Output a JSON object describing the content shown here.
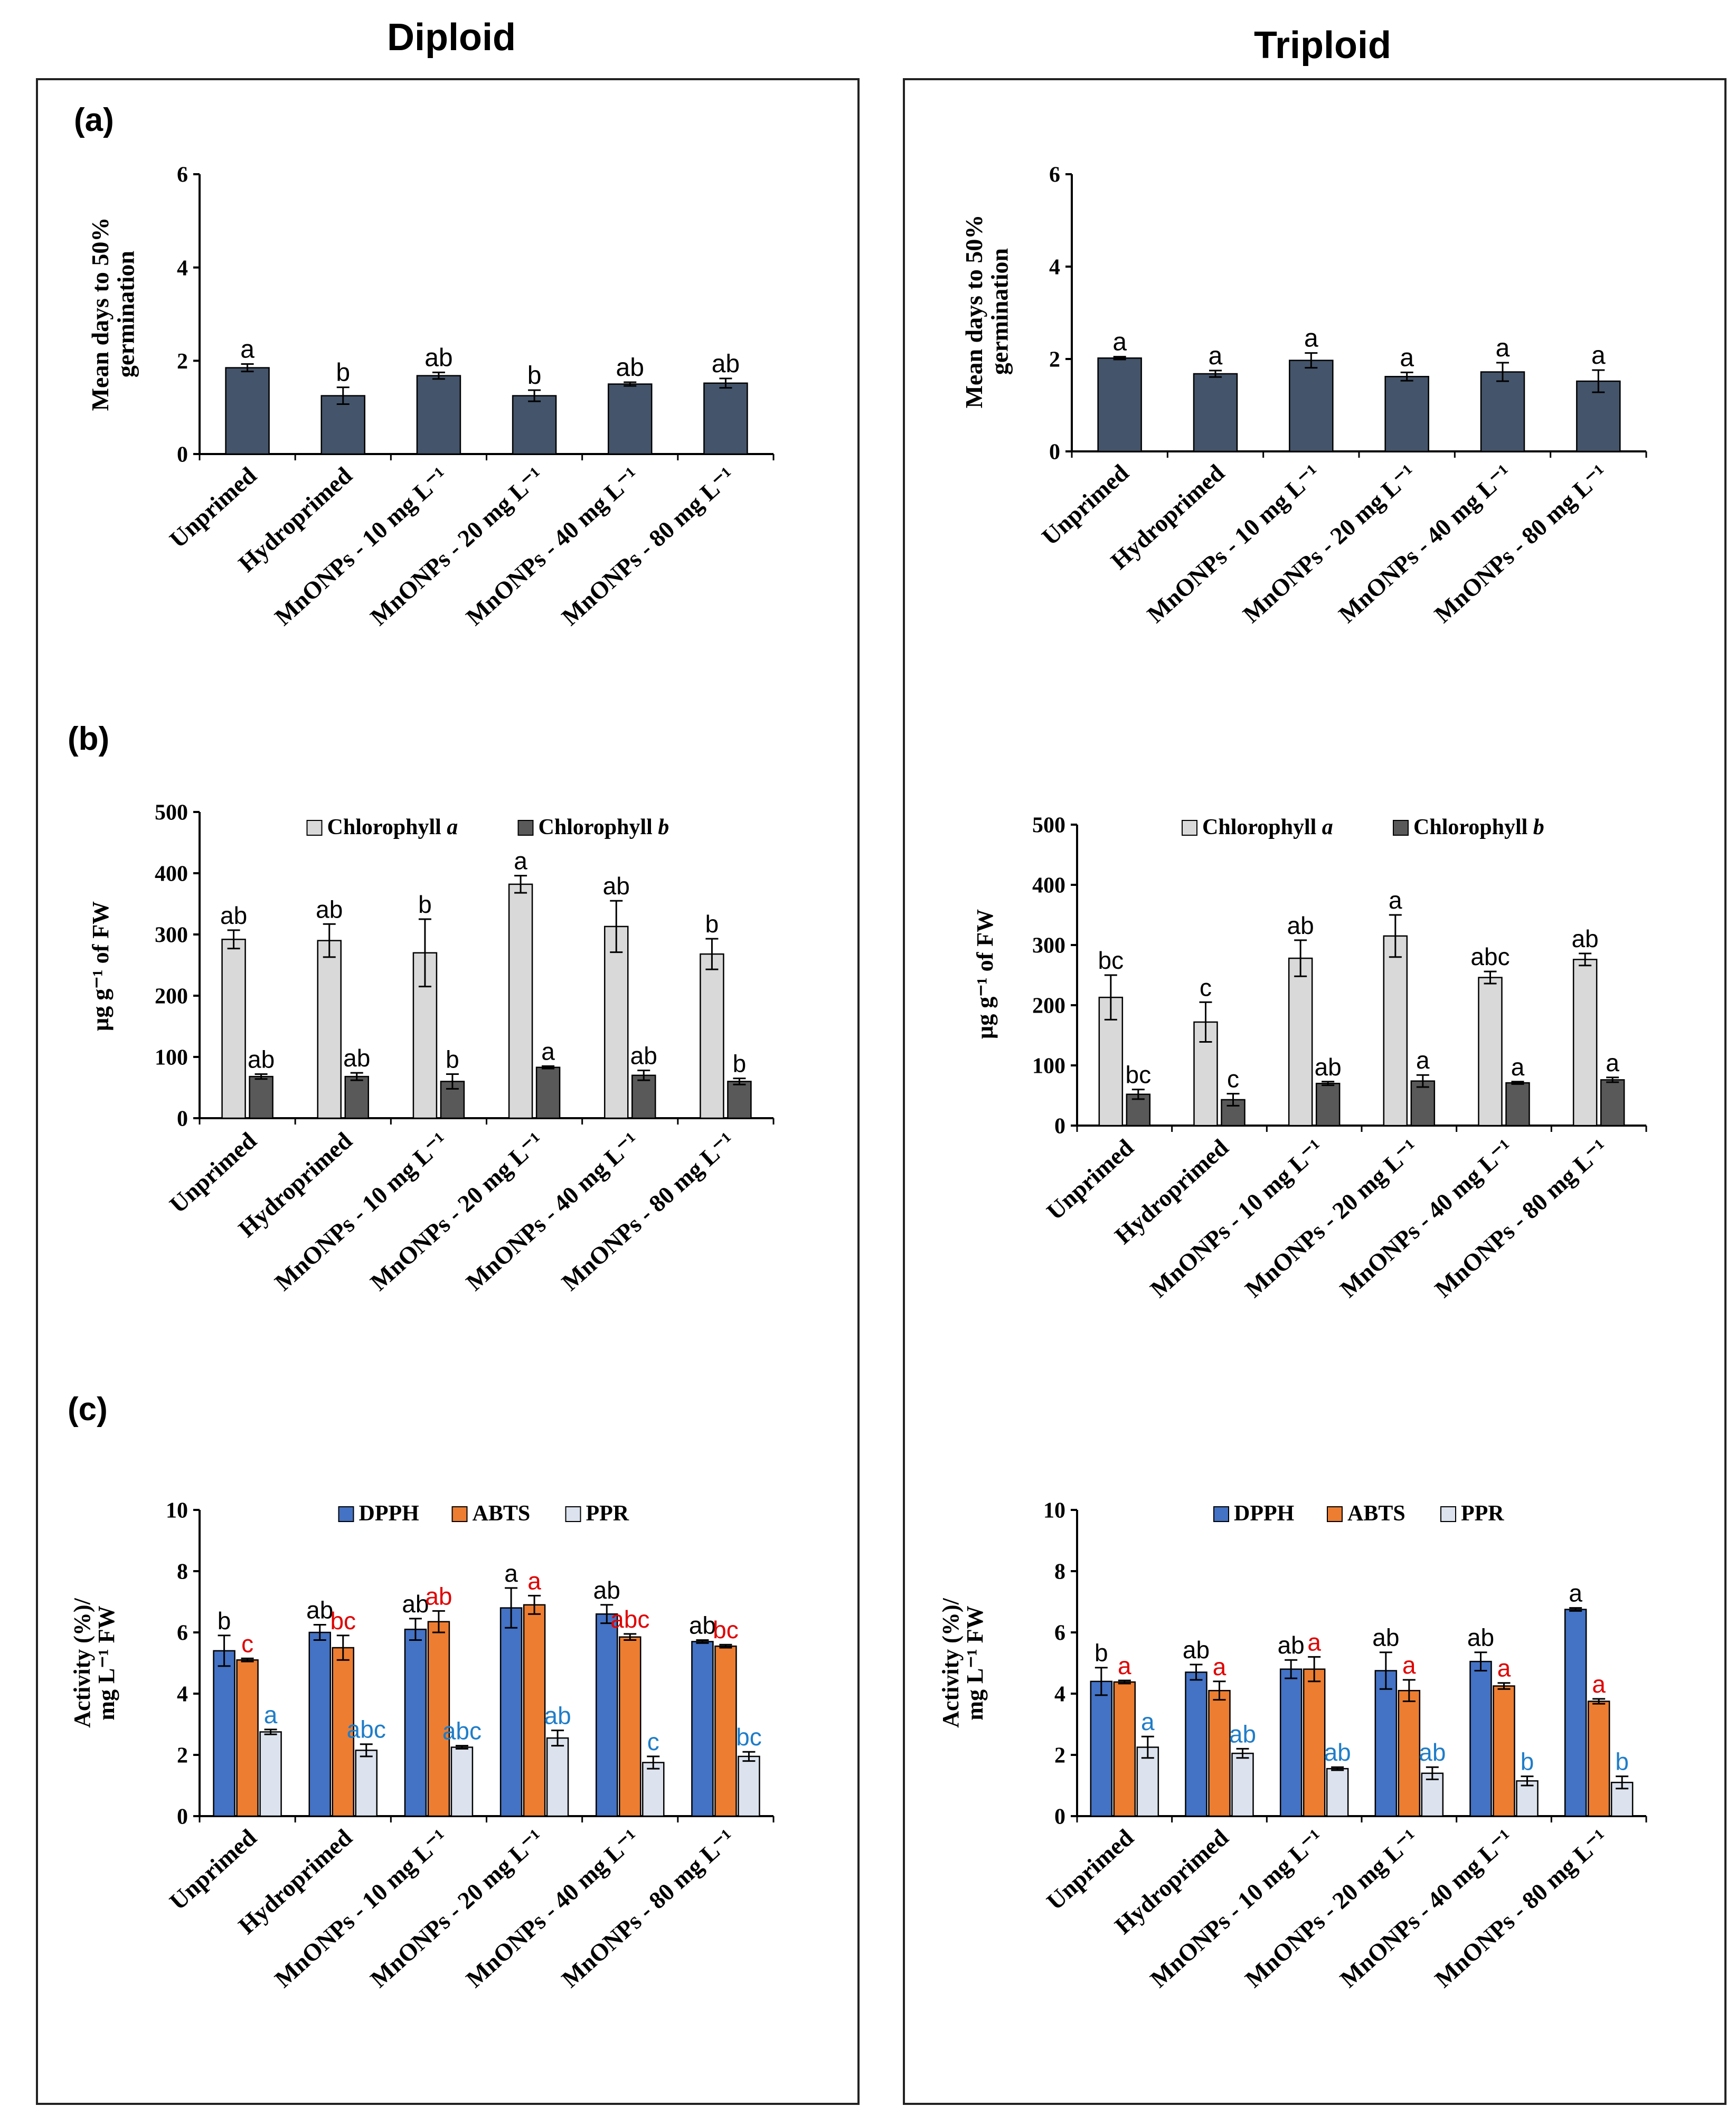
{
  "page": {
    "left_column_title": "Diploid",
    "right_column_title": "Triploid",
    "panel_labels": [
      "(a)",
      "(b)",
      "(c)"
    ]
  },
  "colors": {
    "navy": "#44546a",
    "light_gray": "#d9d9d9",
    "dark_gray": "#595959",
    "dpph": "#4472c4",
    "abts": "#ed7d31",
    "ppr": "#dce3ee",
    "letters_red": "#e00000",
    "letters_blue": "#1f7dc8",
    "letters_black": "#000000"
  },
  "categories": [
    "Unprimed",
    "Hydroprimed",
    "MnONPs - 10 mg L⁻¹",
    "MnONPs - 20 mg L⁻¹",
    "MnONPs - 40 mg L⁻¹",
    "MnONPs - 80 mg L⁻¹"
  ],
  "chart_data": [
    {
      "id": "a-diploid",
      "panel": "(a)",
      "group": "Diploid",
      "type": "bar",
      "ylabel": "Mean days to 50% germination",
      "ylim": [
        0,
        6
      ],
      "yticks": [
        0,
        2,
        4,
        6
      ],
      "categories": [
        "Unprimed",
        "Hydroprimed",
        "MnONPs - 10 mg L⁻¹",
        "MnONPs - 20 mg L⁻¹",
        "MnONPs - 40 mg L⁻¹",
        "MnONPs - 80 mg L⁻¹"
      ],
      "series": [
        {
          "name": "Mean days to 50% germination",
          "color": "#44546a",
          "values": [
            1.85,
            1.25,
            1.68,
            1.25,
            1.5,
            1.52
          ],
          "errors": [
            0.08,
            0.18,
            0.07,
            0.12,
            0.04,
            0.1
          ],
          "letters": [
            "a",
            "b",
            "ab",
            "b",
            "ab",
            "ab"
          ],
          "letter_color": "#000000"
        }
      ]
    },
    {
      "id": "a-triploid",
      "panel": "(a)",
      "group": "Triploid",
      "type": "bar",
      "ylabel": "Mean days to 50% germination",
      "ylim": [
        0,
        6
      ],
      "yticks": [
        0,
        2,
        4,
        6
      ],
      "categories": [
        "Unprimed",
        "Hydroprimed",
        "MnONPs - 10 mg L⁻¹",
        "MnONPs - 20 mg L⁻¹",
        "MnONPs - 40 mg L⁻¹",
        "MnONPs - 80 mg L⁻¹"
      ],
      "series": [
        {
          "name": "Mean days to 50% germination",
          "color": "#44546a",
          "values": [
            2.02,
            1.68,
            1.97,
            1.62,
            1.72,
            1.52
          ],
          "errors": [
            0.03,
            0.07,
            0.16,
            0.09,
            0.2,
            0.24
          ],
          "letters": [
            "a",
            "a",
            "a",
            "a",
            "a",
            "a"
          ],
          "letter_color": "#000000"
        }
      ]
    },
    {
      "id": "b-diploid",
      "panel": "(b)",
      "group": "Diploid",
      "type": "bar",
      "ylabel": "µg g⁻¹ of FW",
      "ylim": [
        0,
        500
      ],
      "yticks": [
        0,
        100,
        200,
        300,
        400,
        500
      ],
      "categories": [
        "Unprimed",
        "Hydroprimed",
        "MnONPs - 10 mg L⁻¹",
        "MnONPs - 20 mg L⁻¹",
        "MnONPs - 40 mg L⁻¹",
        "MnONPs - 80 mg L⁻¹"
      ],
      "legend": {
        "position": "top",
        "entries": [
          {
            "name": "Chlorophyll ",
            "italic": "a"
          },
          {
            "name": "Chlorophyll ",
            "italic": "b"
          }
        ]
      },
      "series": [
        {
          "name": "Chlorophyll a",
          "color": "#d9d9d9",
          "values": [
            292,
            290,
            270,
            382,
            313,
            268
          ],
          "errors": [
            15,
            27,
            55,
            14,
            42,
            25
          ],
          "letters": [
            "ab",
            "ab",
            "b",
            "a",
            "ab",
            "b"
          ],
          "letter_color": "#000000"
        },
        {
          "name": "Chlorophyll b",
          "color": "#595959",
          "values": [
            68,
            68,
            60,
            83,
            70,
            60
          ],
          "errors": [
            4,
            6,
            12,
            2,
            8,
            5
          ],
          "letters": [
            "ab",
            "ab",
            "b",
            "a",
            "ab",
            "b"
          ],
          "letter_color": "#000000"
        }
      ]
    },
    {
      "id": "b-triploid",
      "panel": "(b)",
      "group": "Triploid",
      "type": "bar",
      "ylabel": "µg g⁻¹ of FW",
      "ylim": [
        0,
        500
      ],
      "yticks": [
        0,
        100,
        200,
        300,
        400,
        500
      ],
      "categories": [
        "Unprimed",
        "Hydroprimed",
        "MnONPs - 10 mg L⁻¹",
        "MnONPs - 20 mg L⁻¹",
        "MnONPs - 40 mg L⁻¹",
        "MnONPs - 80 mg L⁻¹"
      ],
      "legend": {
        "position": "top",
        "entries": [
          {
            "name": "Chlorophyll ",
            "italic": "a"
          },
          {
            "name": "Chlorophyll ",
            "italic": "b"
          }
        ]
      },
      "series": [
        {
          "name": "Chlorophyll a",
          "color": "#d9d9d9",
          "values": [
            213,
            172,
            278,
            315,
            246,
            276
          ],
          "errors": [
            37,
            33,
            30,
            35,
            10,
            10
          ],
          "letters": [
            "bc",
            "c",
            "ab",
            "a",
            "abc",
            "ab"
          ],
          "letter_color": "#000000"
        },
        {
          "name": "Chlorophyll b",
          "color": "#595959",
          "values": [
            52,
            43,
            70,
            74,
            71,
            76
          ],
          "errors": [
            8,
            10,
            3,
            10,
            2,
            4
          ],
          "letters": [
            "bc",
            "c",
            "ab",
            "a",
            "a",
            "a"
          ],
          "letter_color": "#000000"
        }
      ]
    },
    {
      "id": "c-diploid",
      "panel": "(c)",
      "group": "Diploid",
      "type": "bar",
      "ylabel": "Activity (%)/ mg L⁻¹ FW",
      "ylim": [
        0,
        10
      ],
      "yticks": [
        0,
        2,
        4,
        6,
        8,
        10
      ],
      "categories": [
        "Unprimed",
        "Hydroprimed",
        "MnONPs - 10 mg L⁻¹",
        "MnONPs - 20 mg L⁻¹",
        "MnONPs - 40 mg L⁻¹",
        "MnONPs - 80 mg L⁻¹"
      ],
      "legend": {
        "position": "top",
        "entries": [
          {
            "name": "DPPH"
          },
          {
            "name": "ABTS"
          },
          {
            "name": "PPR"
          }
        ]
      },
      "series": [
        {
          "name": "DPPH",
          "color": "#4472c4",
          "values": [
            5.4,
            6.0,
            6.1,
            6.8,
            6.6,
            5.7
          ],
          "errors": [
            0.5,
            0.25,
            0.35,
            0.65,
            0.3,
            0.05
          ],
          "letters": [
            "b",
            "ab",
            "ab",
            "a",
            "ab",
            "ab"
          ],
          "letter_color": "#000000"
        },
        {
          "name": "ABTS",
          "color": "#ed7d31",
          "values": [
            5.1,
            5.5,
            6.35,
            6.9,
            5.85,
            5.55
          ],
          "errors": [
            0.05,
            0.4,
            0.35,
            0.3,
            0.1,
            0.05
          ],
          "letters": [
            "c",
            "bc",
            "ab",
            "a",
            "abc",
            "bc"
          ],
          "letter_color": "#e00000"
        },
        {
          "name": "PPR",
          "color": "#dce3ee",
          "values": [
            2.75,
            2.15,
            2.25,
            2.55,
            1.75,
            1.95
          ],
          "errors": [
            0.08,
            0.2,
            0.05,
            0.25,
            0.2,
            0.15
          ],
          "letters": [
            "a",
            "abc",
            "abc",
            "ab",
            "c",
            "bc"
          ],
          "letter_color": "#1f7dc8"
        }
      ]
    },
    {
      "id": "c-triploid",
      "panel": "(c)",
      "group": "Triploid",
      "type": "bar",
      "ylabel": "Activity (%)/ mg L⁻¹ FW",
      "ylim": [
        0,
        10
      ],
      "yticks": [
        0,
        2,
        4,
        6,
        8,
        10
      ],
      "categories": [
        "Unprimed",
        "Hydroprimed",
        "MnONPs - 10 mg L⁻¹",
        "MnONPs - 20 mg L⁻¹",
        "MnONPs - 40 mg L⁻¹",
        "MnONPs - 80 mg L⁻¹"
      ],
      "legend": {
        "position": "top",
        "entries": [
          {
            "name": "DPPH"
          },
          {
            "name": "ABTS"
          },
          {
            "name": "PPR"
          }
        ]
      },
      "series": [
        {
          "name": "DPPH",
          "color": "#4472c4",
          "values": [
            4.4,
            4.7,
            4.8,
            4.75,
            5.05,
            6.75
          ],
          "errors": [
            0.45,
            0.25,
            0.3,
            0.6,
            0.3,
            0.05
          ],
          "letters": [
            "b",
            "ab",
            "ab",
            "ab",
            "ab",
            "a"
          ],
          "letter_color": "#000000"
        },
        {
          "name": "ABTS",
          "color": "#ed7d31",
          "values": [
            4.38,
            4.1,
            4.8,
            4.1,
            4.25,
            3.75
          ],
          "errors": [
            0.05,
            0.3,
            0.4,
            0.35,
            0.1,
            0.08
          ],
          "letters": [
            "a",
            "a",
            "a",
            "a",
            "a",
            "a"
          ],
          "letter_color": "#e00000"
        },
        {
          "name": "PPR",
          "color": "#dce3ee",
          "values": [
            2.25,
            2.05,
            1.55,
            1.4,
            1.15,
            1.1
          ],
          "errors": [
            0.35,
            0.15,
            0.05,
            0.2,
            0.15,
            0.2
          ],
          "letters": [
            "a",
            "ab",
            "ab",
            "ab",
            "b",
            "b"
          ],
          "letter_color": "#1f7dc8"
        }
      ]
    }
  ]
}
